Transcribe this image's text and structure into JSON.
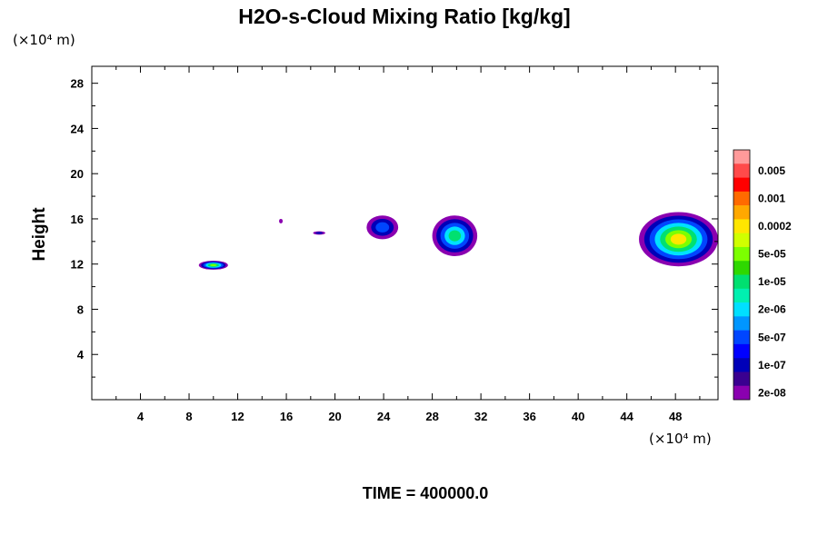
{
  "chart_data": {
    "type": "heatmap",
    "title": "H2O-s-Cloud Mixing Ratio [kg/kg]",
    "xlabel": "",
    "ylabel": "Height",
    "x_unit": "(×10⁴ m)",
    "y_unit": "(×10⁴ m)",
    "xlim": [
      0,
      51.5
    ],
    "ylim": [
      0,
      29.5
    ],
    "x_ticks": [
      "4",
      "8",
      "12",
      "16",
      "20",
      "24",
      "28",
      "32",
      "36",
      "40",
      "44",
      "48"
    ],
    "y_ticks": [
      "4",
      "8",
      "12",
      "16",
      "20",
      "24",
      "28"
    ],
    "colorbar": {
      "labels": [
        "0.005",
        "0.001",
        "0.0002",
        "5e-05",
        "1e-05",
        "2e-06",
        "5e-07",
        "1e-07",
        "2e-08"
      ],
      "colors": [
        "#ff9a9a",
        "#ff4a4a",
        "#ff0000",
        "#ff6a00",
        "#ffa800",
        "#ffe600",
        "#d0ff00",
        "#7cff00",
        "#2ed800",
        "#00e070",
        "#00f0b0",
        "#00e0ff",
        "#0096ff",
        "#0046ff",
        "#0000ff",
        "#0000b8",
        "#3a0090",
        "#8a00b0"
      ]
    },
    "cloud_regions": [
      {
        "name": "cloud-a",
        "x": [
          8.8,
          11.2
        ],
        "y": [
          11.5,
          12.3
        ],
        "level": "5e-05"
      },
      {
        "name": "cloud-b",
        "x": [
          15.4,
          15.7
        ],
        "y": [
          15.6,
          16.0
        ],
        "level": "2e-08"
      },
      {
        "name": "cloud-c",
        "x": [
          18.2,
          19.2
        ],
        "y": [
          14.6,
          14.9
        ],
        "level": "1e-07"
      },
      {
        "name": "cloud-d",
        "x": [
          22.6,
          25.2
        ],
        "y": [
          14.2,
          16.3
        ],
        "level": "5e-07"
      },
      {
        "name": "cloud-e",
        "x": [
          28.0,
          31.7
        ],
        "y": [
          12.7,
          16.3
        ],
        "level": "1e-05"
      },
      {
        "name": "cloud-f",
        "x": [
          45.0,
          51.5
        ],
        "y": [
          11.8,
          16.6
        ],
        "level": "0.0002"
      }
    ]
  },
  "time_label": "TIME = 400000.0"
}
